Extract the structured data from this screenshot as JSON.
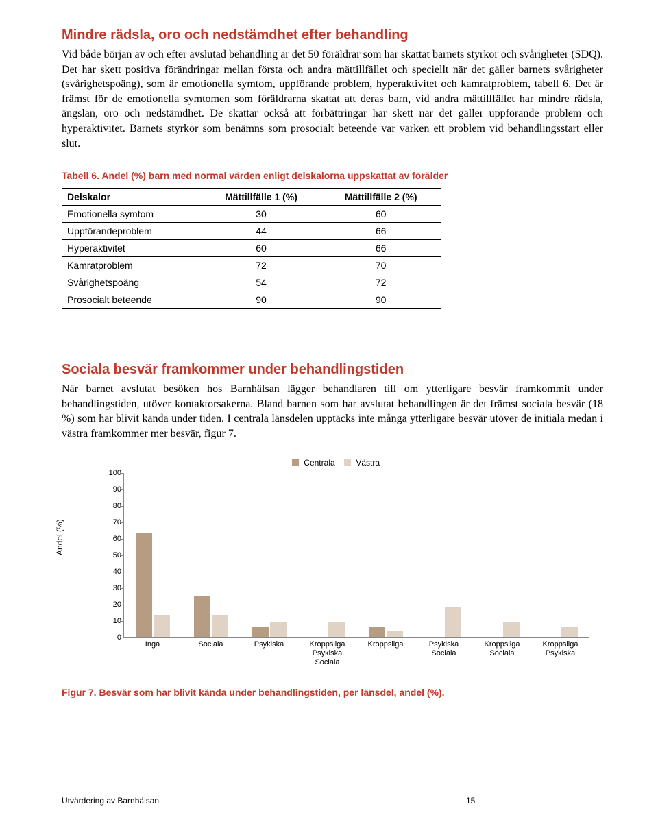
{
  "colors": {
    "accent": "#c0392b",
    "text": "#000000",
    "series_a": "#b69c83",
    "series_b": "#e0d3c5"
  },
  "section1": {
    "heading": "Mindre rädsla, oro och nedstämdhet efter behandling",
    "body": "Vid både början av och efter avslutad behandling är det 50 föräldrar som har skattat barnets styrkor och svårigheter (SDQ). Det har skett positiva förändringar mellan första och andra mättillfället och speciellt när det gäller barnets svårigheter (svårighetspoäng), som är emotionella symtom, uppförande problem, hyperaktivitet och kamratproblem, tabell 6. Det är främst för de emotionella symtomen som föräldrarna skattat att deras barn, vid andra mättillfället har mindre rädsla, ängslan, oro och nedstämdhet. De skattar också att förbättringar har skett när det gäller uppförande problem och hyperaktivitet. Barnets styrkor som benämns som prosocialt beteende var varken ett problem vid behandlingsstart eller slut."
  },
  "table6": {
    "caption": "Tabell 6. Andel (%) barn med normal värden enligt delskalorna uppskattat av förälder",
    "columns": [
      "Delskalor",
      "Mättillfälle 1 (%)",
      "Mättillfälle 2 (%)"
    ],
    "rows": [
      [
        "Emotionella symtom",
        "30",
        "60"
      ],
      [
        "Uppförandeproblem",
        "44",
        "66"
      ],
      [
        "Hyperaktivitet",
        "60",
        "66"
      ],
      [
        "Kamratproblem",
        "72",
        "70"
      ],
      [
        "Svårighetspoäng",
        "54",
        "72"
      ],
      [
        "Prosocialt beteende",
        "90",
        "90"
      ]
    ]
  },
  "section2": {
    "heading": "Sociala besvär framkommer under behandlingstiden",
    "body": "När barnet avslutat besöken hos Barnhälsan lägger behandlaren till om ytterligare besvär framkommit under behandlingstiden, utöver kontaktorsakerna. Bland barnen som har avslutat behandlingen är det främst sociala besvär (18 %) som har blivit kända under tiden. I centrala länsdelen upptäcks inte många ytterligare besvär utöver de initiala medan i västra framkommer mer besvär, figur 7."
  },
  "chart": {
    "type": "bar",
    "legend": [
      "Centrala",
      "Västra"
    ],
    "ylabel": "Andel (%)",
    "ylim": [
      0,
      100
    ],
    "ytick_step": 10,
    "categories": [
      "Inga",
      "Sociala",
      "Psykiska",
      "Kroppsliga\nPsykiska\nSociala",
      "Kroppsliga",
      "Psykiska\nSociala",
      "Kroppsliga\nSociala",
      "Kroppsliga\nPsykiska"
    ],
    "series": [
      {
        "name": "Centrala",
        "color": "#b69c83",
        "values": [
          63,
          25,
          6,
          0,
          6,
          0,
          0,
          0
        ]
      },
      {
        "name": "Västra",
        "color": "#e0d3c5",
        "values": [
          13,
          13,
          9,
          9,
          3,
          18,
          9,
          6
        ]
      }
    ]
  },
  "figure_caption": "Figur 7. Besvär som har blivit kända under behandlingstiden, per länsdel, andel (%).",
  "footer": {
    "left": "Utvärdering av Barnhälsan",
    "page": "15"
  }
}
